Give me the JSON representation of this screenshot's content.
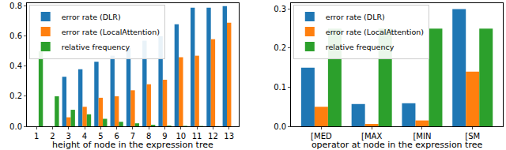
{
  "chart_data": [
    {
      "type": "bar",
      "x_label": "height of node in the expression tree",
      "categories": [
        1,
        2,
        3,
        4,
        5,
        6,
        7,
        8,
        9,
        10,
        11,
        12,
        13
      ],
      "series": [
        {
          "name": "error rate (DLR)",
          "color": "#1f77b4",
          "values": [
            0,
            0,
            0.33,
            0.38,
            0.43,
            0.47,
            0.52,
            0.57,
            0.6,
            0.68,
            0.79,
            0.79,
            0.8
          ]
        },
        {
          "name": "error rate (LocalAttention)",
          "color": "#ff7f0e",
          "values": [
            0,
            0,
            0.06,
            0.13,
            0.19,
            0.2,
            0.24,
            0.28,
            0.31,
            0.46,
            0.47,
            0.58,
            0.69
          ]
        },
        {
          "name": "relative frequency",
          "color": "#2ca02c",
          "values": [
            0.5,
            0.2,
            0.11,
            0.08,
            0.05,
            0.03,
            0.02,
            0.01,
            0.005,
            0.003,
            0.002,
            0.001,
            0
          ]
        }
      ],
      "ylim": [
        0,
        0.82
      ],
      "yticks": [
        {
          "value": 0,
          "label": "0.0"
        },
        {
          "value": 0.2,
          "label": "0.2"
        },
        {
          "value": 0.4,
          "label": "0.4"
        },
        {
          "value": 0.6,
          "label": "0.6"
        },
        {
          "value": 0.8,
          "label": "0.8"
        }
      ],
      "legend": "upper left"
    },
    {
      "type": "bar",
      "x_label": "operator at node in the expression tree",
      "categories": [
        "[MED",
        "[MAX",
        "[MIN",
        "[SM"
      ],
      "series": [
        {
          "name": "error rate (DLR)",
          "color": "#1f77b4",
          "values": [
            0.15,
            0.057,
            0.059,
            0.3
          ]
        },
        {
          "name": "error rate (LocalAttention)",
          "color": "#ff7f0e",
          "values": [
            0.05,
            0.006,
            0.015,
            0.14
          ]
        },
        {
          "name": "relative frequency",
          "color": "#2ca02c",
          "values": [
            0.25,
            0.25,
            0.25,
            0.25
          ]
        }
      ],
      "ylim": [
        0,
        0.315
      ],
      "yticks": [
        {
          "value": 0,
          "label": "0.0"
        },
        {
          "value": 0.1,
          "label": "0.1"
        },
        {
          "value": 0.2,
          "label": "0.2"
        },
        {
          "value": 0.3,
          "label": "0.3"
        }
      ],
      "legend": "upper left"
    }
  ]
}
